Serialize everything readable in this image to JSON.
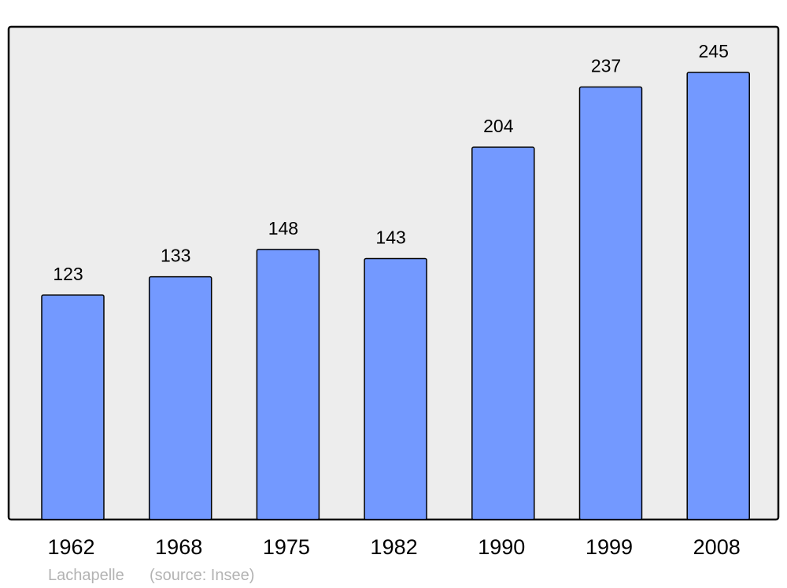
{
  "chart_data": {
    "type": "bar",
    "title": "",
    "xlabel": "",
    "ylabel": "",
    "categories": [
      "1962",
      "1968",
      "1975",
      "1982",
      "1990",
      "1999",
      "2008"
    ],
    "values": [
      123,
      133,
      148,
      143,
      204,
      237,
      245
    ],
    "data_labels": [
      "123",
      "133",
      "148",
      "143",
      "204",
      "237",
      "245"
    ],
    "ylim": [
      0,
      270
    ],
    "grid": false,
    "legend": "none",
    "colors": {
      "bar": "#7399ff",
      "bar_stroke": "#000000",
      "plot_background": "#ededed",
      "frame": "#000000"
    }
  },
  "footer": {
    "place": "Lachapelle",
    "source": "(source: Insee)"
  }
}
